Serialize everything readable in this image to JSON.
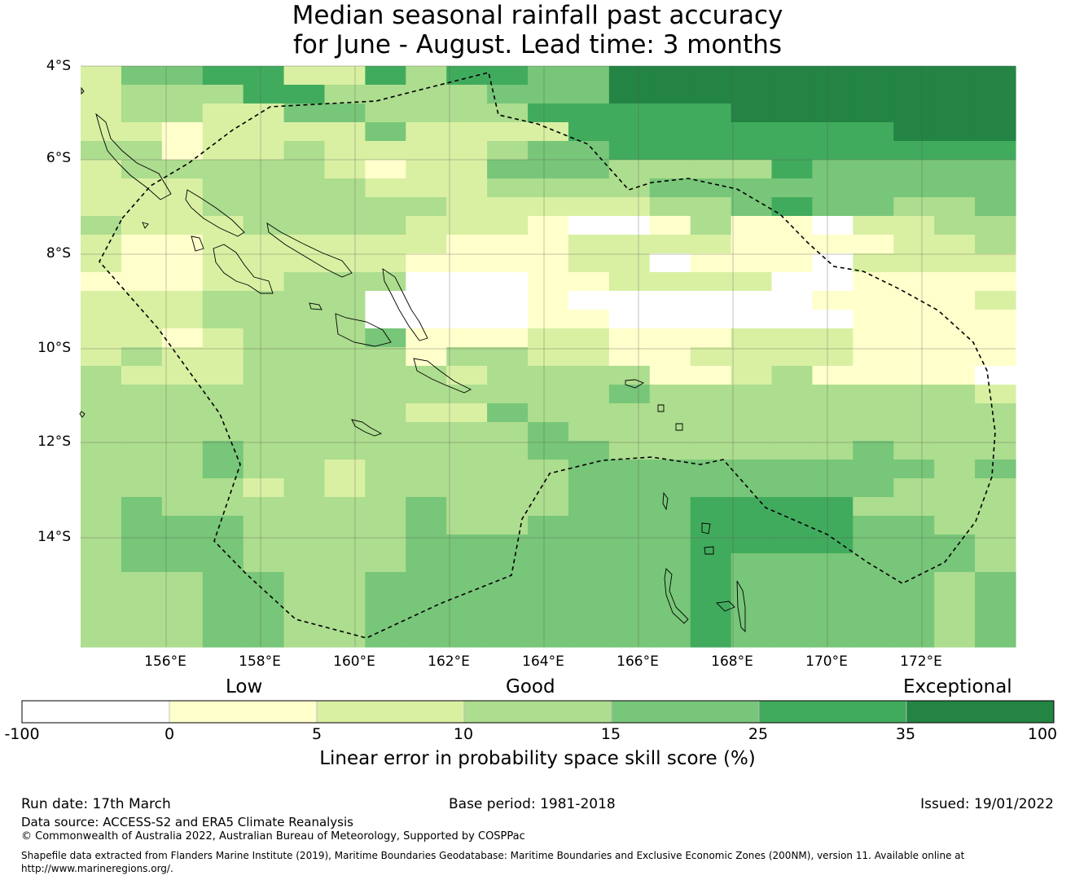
{
  "title": {
    "line1": "Median seasonal rainfall past accuracy",
    "line2": "for June - August. Lead time: 3 months"
  },
  "map": {
    "lat_labels": [
      "4°S",
      "6°S",
      "8°S",
      "10°S",
      "12°S",
      "14°S"
    ],
    "lon_labels": [
      "156°E",
      "158°E",
      "160°E",
      "162°E",
      "164°E",
      "166°E",
      "168°E",
      "170°E",
      "172°E"
    ],
    "extent": {
      "lon_min": 154.2,
      "lon_max": 173.6,
      "lat_max": -4.0,
      "lat_min": -16.3
    },
    "skill_classes_percent": [
      [
        2,
        4,
        4,
        5,
        5,
        2,
        2,
        5,
        3,
        5,
        5,
        4,
        4,
        6,
        6,
        6,
        6,
        6,
        6,
        6,
        6,
        6,
        6
      ],
      [
        2,
        3,
        3,
        3,
        5,
        5,
        3,
        3,
        3,
        3,
        4,
        4,
        4,
        6,
        6,
        6,
        6,
        6,
        6,
        6,
        6,
        6,
        6
      ],
      [
        2,
        3,
        3,
        2,
        2,
        4,
        4,
        3,
        3,
        3,
        3,
        5,
        5,
        5,
        5,
        5,
        6,
        6,
        6,
        6,
        6,
        6,
        6
      ],
      [
        2,
        2,
        1,
        2,
        2,
        2,
        2,
        4,
        2,
        2,
        2,
        2,
        5,
        5,
        5,
        5,
        5,
        5,
        5,
        5,
        6,
        6,
        6
      ],
      [
        3,
        3,
        1,
        2,
        2,
        3,
        2,
        2,
        2,
        2,
        3,
        4,
        4,
        5,
        5,
        5,
        5,
        5,
        5,
        5,
        5,
        5,
        5
      ],
      [
        2,
        3,
        3,
        3,
        3,
        3,
        2,
        1,
        2,
        2,
        4,
        4,
        4,
        3,
        3,
        3,
        3,
        5,
        4,
        4,
        4,
        4,
        4
      ],
      [
        2,
        2,
        2,
        3,
        3,
        3,
        3,
        2,
        2,
        2,
        3,
        3,
        3,
        3,
        4,
        4,
        4,
        4,
        4,
        4,
        4,
        4,
        4
      ],
      [
        2,
        2,
        2,
        3,
        3,
        3,
        3,
        3,
        3,
        2,
        2,
        2,
        2,
        2,
        3,
        3,
        4,
        5,
        4,
        4,
        3,
        3,
        4
      ],
      [
        3,
        2,
        2,
        2,
        3,
        3,
        3,
        3,
        2,
        2,
        2,
        1,
        0,
        0,
        1,
        3,
        1,
        1,
        0,
        2,
        2,
        3,
        3
      ],
      [
        2,
        1,
        1,
        2,
        2,
        2,
        2,
        2,
        2,
        1,
        1,
        1,
        2,
        2,
        2,
        2,
        1,
        1,
        1,
        1,
        2,
        2,
        3
      ],
      [
        2,
        1,
        1,
        2,
        2,
        2,
        2,
        2,
        1,
        1,
        1,
        1,
        2,
        2,
        0,
        1,
        1,
        1,
        0,
        2,
        2,
        2,
        2
      ],
      [
        1,
        1,
        1,
        2,
        2,
        3,
        3,
        3,
        0,
        0,
        0,
        1,
        1,
        2,
        2,
        2,
        2,
        0,
        0,
        1,
        1,
        1,
        1
      ],
      [
        2,
        2,
        2,
        3,
        3,
        3,
        3,
        0,
        0,
        0,
        0,
        1,
        0,
        0,
        0,
        0,
        0,
        0,
        1,
        1,
        1,
        1,
        2
      ],
      [
        2,
        2,
        2,
        3,
        3,
        3,
        3,
        0,
        0,
        0,
        0,
        1,
        1,
        0,
        0,
        0,
        0,
        0,
        0,
        1,
        1,
        1,
        1
      ],
      [
        2,
        2,
        1,
        2,
        3,
        3,
        3,
        4,
        1,
        1,
        1,
        2,
        2,
        1,
        1,
        1,
        2,
        2,
        2,
        1,
        1,
        1,
        1
      ],
      [
        2,
        3,
        2,
        2,
        3,
        3,
        3,
        3,
        1,
        3,
        3,
        2,
        2,
        1,
        1,
        2,
        2,
        2,
        2,
        1,
        1,
        1,
        1
      ],
      [
        3,
        2,
        2,
        2,
        3,
        3,
        3,
        3,
        3,
        2,
        3,
        3,
        3,
        3,
        1,
        1,
        2,
        3,
        1,
        1,
        1,
        1,
        0
      ],
      [
        3,
        3,
        3,
        3,
        3,
        3,
        3,
        3,
        3,
        3,
        3,
        3,
        3,
        4,
        3,
        3,
        3,
        3,
        3,
        3,
        3,
        3,
        2
      ],
      [
        3,
        3,
        3,
        3,
        3,
        3,
        3,
        3,
        2,
        2,
        4,
        3,
        3,
        3,
        3,
        3,
        3,
        3,
        3,
        3,
        3,
        3,
        3
      ],
      [
        3,
        3,
        3,
        3,
        3,
        3,
        3,
        3,
        3,
        3,
        3,
        4,
        3,
        3,
        3,
        3,
        3,
        3,
        3,
        3,
        3,
        3,
        3
      ],
      [
        3,
        3,
        3,
        4,
        3,
        3,
        3,
        3,
        3,
        3,
        3,
        4,
        4,
        3,
        3,
        3,
        3,
        3,
        3,
        4,
        3,
        3,
        3
      ],
      [
        3,
        3,
        3,
        4,
        3,
        3,
        2,
        3,
        3,
        3,
        3,
        3,
        4,
        4,
        4,
        4,
        4,
        4,
        4,
        4,
        4,
        3,
        4
      ],
      [
        3,
        3,
        3,
        3,
        2,
        3,
        2,
        3,
        3,
        3,
        3,
        3,
        4,
        4,
        4,
        4,
        4,
        4,
        4,
        4,
        3,
        3,
        3
      ],
      [
        3,
        4,
        3,
        3,
        3,
        3,
        3,
        3,
        4,
        3,
        3,
        3,
        4,
        4,
        4,
        5,
        5,
        5,
        5,
        3,
        3,
        3,
        3
      ],
      [
        3,
        4,
        4,
        4,
        3,
        3,
        3,
        3,
        4,
        3,
        3,
        4,
        4,
        4,
        4,
        5,
        5,
        5,
        5,
        4,
        4,
        3,
        3
      ],
      [
        3,
        4,
        4,
        4,
        3,
        3,
        3,
        3,
        4,
        4,
        4,
        4,
        4,
        4,
        4,
        5,
        5,
        5,
        5,
        4,
        4,
        4,
        3
      ],
      [
        3,
        4,
        4,
        4,
        3,
        3,
        3,
        3,
        4,
        4,
        4,
        4,
        4,
        4,
        4,
        5,
        4,
        4,
        4,
        4,
        4,
        4,
        3
      ],
      [
        3,
        3,
        3,
        4,
        4,
        3,
        3,
        4,
        4,
        4,
        4,
        4,
        4,
        4,
        4,
        5,
        4,
        4,
        4,
        4,
        4,
        3,
        4
      ],
      [
        3,
        3,
        3,
        4,
        4,
        3,
        3,
        4,
        4,
        4,
        4,
        4,
        4,
        4,
        4,
        5,
        4,
        4,
        4,
        4,
        4,
        3,
        4
      ],
      [
        3,
        3,
        3,
        4,
        4,
        3,
        3,
        4,
        4,
        4,
        4,
        4,
        4,
        4,
        4,
        5,
        4,
        4,
        4,
        4,
        4,
        3,
        4
      ],
      [
        3,
        3,
        3,
        4,
        4,
        3,
        3,
        4,
        4,
        4,
        4,
        4,
        4,
        4,
        4,
        5,
        4,
        4,
        4,
        4,
        4,
        3,
        4
      ]
    ]
  },
  "colorbar": {
    "category_labels": {
      "low": "Low",
      "good": "Good",
      "exceptional": "Exceptional"
    },
    "ticks": [
      "-100",
      "0",
      "5",
      "10",
      "15",
      "25",
      "35",
      "100"
    ],
    "colors": [
      "#ffffff",
      "#ffffcc",
      "#d9f0a3",
      "#addd8e",
      "#78c679",
      "#41ab5d",
      "#238443"
    ],
    "title": "Linear error in probability space skill score (%)"
  },
  "footer": {
    "run_date": "Run date: 17th March",
    "base_period": "Base period: 1981-2018",
    "issued": "Issued: 19/01/2022",
    "data_source": "Data source: ACCESS-S2 and ERA5 Climate Reanalysis",
    "copyright": "© Commonwealth of Australia 2022, Australian Bureau of Meteorology, Supported by COSPPac",
    "shapefile_line1": "Shapefile data extracted from Flanders Marine Institute (2019), Maritime Boundaries Geodatabase: Maritime Boundaries and Exclusive Economic Zones (200NM), version 11. Available online at",
    "shapefile_line2": "http://www.marineregions.org/."
  }
}
